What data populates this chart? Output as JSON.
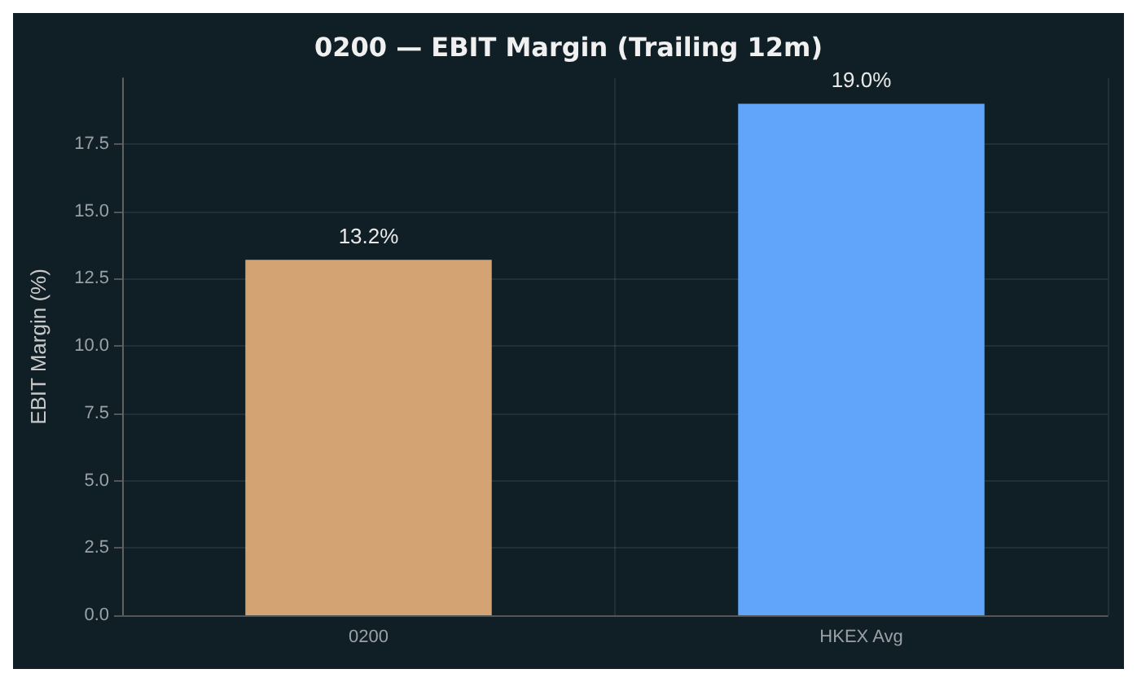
{
  "chart_data": {
    "type": "bar",
    "title": "0200 — EBIT Margin (Trailing 12m)",
    "ylabel": "EBIT Margin (%)",
    "categories": [
      "0200",
      "HKEX Avg"
    ],
    "values": [
      13.2,
      19.0
    ],
    "colors": [
      "#d4a373",
      "#60a5fa"
    ],
    "value_labels": [
      "13.2%",
      "19.0%"
    ],
    "ylim": [
      0,
      19.95
    ],
    "yticks": [
      {
        "value": 0,
        "label": "0.0"
      },
      {
        "value": 2.5,
        "label": "2.5"
      },
      {
        "value": 5,
        "label": "5.0"
      },
      {
        "value": 7.5,
        "label": "7.5"
      },
      {
        "value": 10,
        "label": "10.0"
      },
      {
        "value": 12.5,
        "label": "12.5"
      },
      {
        "value": 15,
        "label": "15.0"
      },
      {
        "value": 17.5,
        "label": "17.5"
      }
    ],
    "grid": true
  }
}
